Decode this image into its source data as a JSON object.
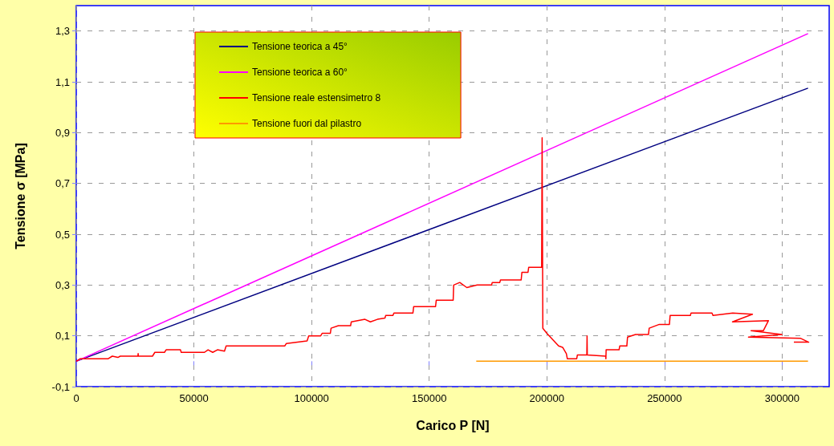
{
  "chart_data": {
    "type": "line",
    "xlabel": "Carico P [N]",
    "ylabel": "Tensione σ [MPa]",
    "xlim": [
      0,
      320000
    ],
    "xticks": [
      0,
      50000,
      100000,
      150000,
      200000,
      250000,
      300000
    ],
    "ylim": [
      -0.1,
      1.4
    ],
    "yticks": [
      {
        "value": -0.1,
        "label": "-0,1"
      },
      {
        "value": 0.1,
        "label": "0,1"
      },
      {
        "value": 0.3,
        "label": "0,3"
      },
      {
        "value": 0.5,
        "label": "0,5"
      },
      {
        "value": 0.7,
        "label": "0,7"
      },
      {
        "value": 0.9,
        "label": "0,9"
      },
      {
        "value": 1.1,
        "label": "1,1"
      },
      {
        "value": 1.3,
        "label": "1,3"
      }
    ],
    "grid": true,
    "legend": "top left",
    "marker": "none",
    "line_style": "solid",
    "series": [
      {
        "name": "Tensione teorica a 45°",
        "color": "#000080",
        "x": [
          0,
          311000
        ],
        "values": [
          0,
          1.075
        ]
      },
      {
        "name": "Tensione teorica a 60°",
        "color": "#ff00ff",
        "x": [
          0,
          311000
        ],
        "values": [
          0,
          1.29
        ]
      },
      {
        "name": "Tensione reale estensimetro 8",
        "color": "#ff0000",
        "x": [
          0,
          1700,
          13600,
          15300,
          17700,
          18700,
          26200,
          26300,
          26400,
          32400,
          33400,
          37500,
          38200,
          44300,
          44600,
          54500,
          56000,
          58000,
          60000,
          63000,
          63700,
          88600,
          89300,
          98100,
          98800,
          103900,
          104500,
          108000,
          108300,
          111400,
          116600,
          116900,
          122700,
          125000,
          128000,
          131200,
          131500,
          134600,
          135000,
          143100,
          143400,
          152700,
          153000,
          160200,
          160400,
          163000,
          166000,
          170400,
          176500,
          176800,
          180000,
          180300,
          189100,
          189400,
          192000,
          192300,
          197800,
          198000,
          198300,
          200000,
          205000,
          206700,
          208300,
          208700,
          212700,
          213000,
          217000,
          217100,
          217200,
          225000,
          225100,
          225200,
          230700,
          231000,
          234000,
          234300,
          237700,
          243200,
          243500,
          247800,
          252100,
          252400,
          261000,
          261300,
          270200,
          270600,
          279000,
          287400,
          278900,
          294200,
          292000,
          286800,
          299900,
          285700,
          307900,
          311300,
          305000
        ],
        "values": [
          0,
          0.01,
          0.01,
          0.02,
          0.015,
          0.02,
          0.02,
          0.03,
          0.02,
          0.02,
          0.035,
          0.035,
          0.045,
          0.045,
          0.035,
          0.035,
          0.045,
          0.035,
          0.045,
          0.04,
          0.06,
          0.06,
          0.07,
          0.08,
          0.1,
          0.1,
          0.11,
          0.11,
          0.13,
          0.14,
          0.14,
          0.155,
          0.165,
          0.155,
          0.165,
          0.17,
          0.18,
          0.18,
          0.19,
          0.19,
          0.215,
          0.215,
          0.24,
          0.24,
          0.3,
          0.31,
          0.29,
          0.3,
          0.3,
          0.31,
          0.31,
          0.32,
          0.32,
          0.35,
          0.35,
          0.37,
          0.37,
          0.88,
          0.13,
          0.11,
          0.06,
          0.055,
          0.03,
          0.01,
          0.01,
          0.025,
          0.025,
          0.1,
          0.025,
          0.02,
          0.01,
          0.045,
          0.045,
          0.06,
          0.06,
          0.095,
          0.105,
          0.105,
          0.13,
          0.145,
          0.145,
          0.18,
          0.18,
          0.19,
          0.19,
          0.18,
          0.19,
          0.185,
          0.155,
          0.16,
          0.12,
          0.12,
          0.105,
          0.095,
          0.09,
          0.075,
          0.075
        ]
      },
      {
        "name": "Tensione fuori dal pilastro",
        "color": "#ff9900",
        "x": [
          170000,
          311000
        ],
        "values": [
          0,
          0
        ]
      }
    ]
  }
}
